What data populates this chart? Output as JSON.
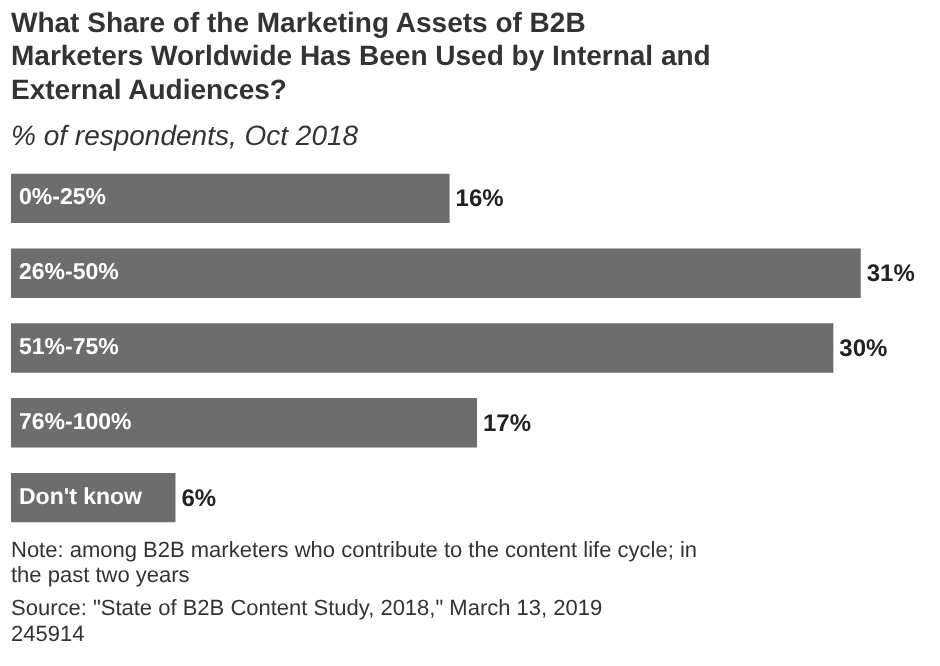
{
  "chart_data": {
    "type": "bar",
    "orientation": "horizontal",
    "title": "What Share of the Marketing Assets of B2B Marketers Worldwide Has Been Used by Internal and External Audiences?",
    "subtitle": "% of respondents, Oct 2018",
    "categories": [
      "0%-25%",
      "26%-50%",
      "51%-75%",
      "76%-100%",
      "Don't know"
    ],
    "values": [
      16,
      31,
      30,
      17,
      6
    ],
    "value_labels": [
      "16%",
      "31%",
      "30%",
      "17%",
      "6%"
    ],
    "color": "#6d6d6d",
    "annotations": [
      "Note: among B2B marketers who contribute to the content life cycle; in the past two years",
      "Source: \"State of B2B Content Study, 2018,\" March 13, 2019",
      "245914"
    ]
  }
}
